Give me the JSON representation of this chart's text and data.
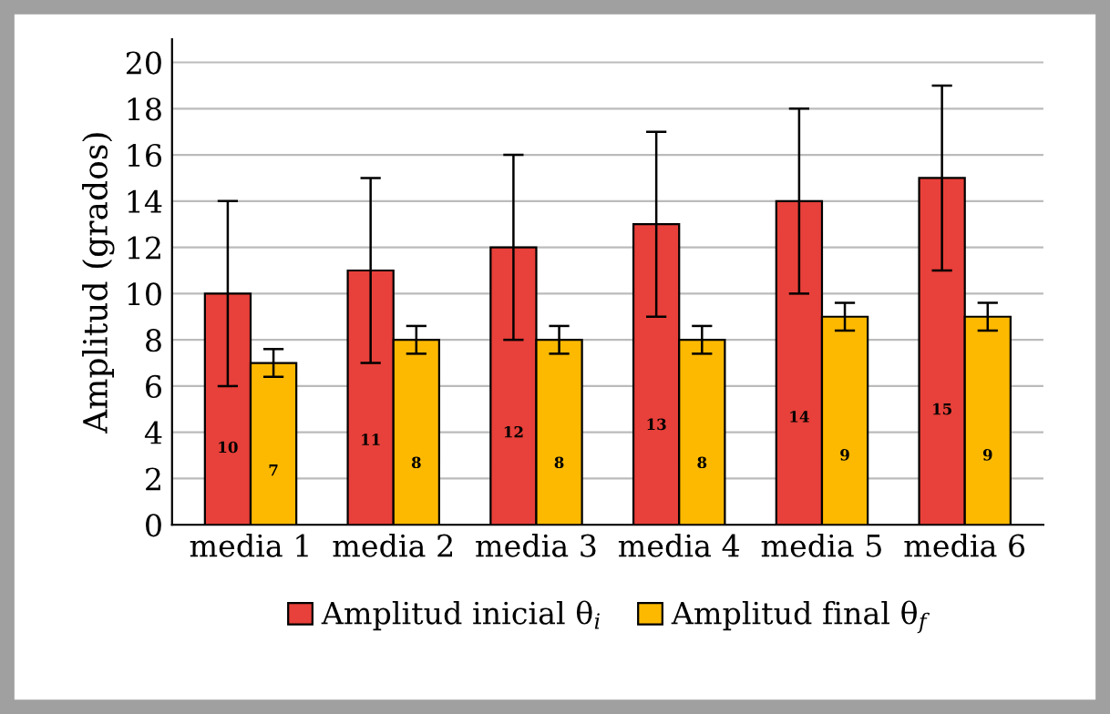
{
  "chart_data": {
    "type": "bar",
    "ylabel": "Amplitud (grados)",
    "categories": [
      "media 1",
      "media 2",
      "media 3",
      "media 4",
      "media 5",
      "media 6"
    ],
    "series": [
      {
        "name": "Amplitud inicial θ$_{i}$",
        "color": "#e8403a",
        "values": [
          10,
          11,
          12,
          13,
          14,
          15
        ],
        "errors": [
          4,
          4,
          4,
          4,
          4,
          4
        ]
      },
      {
        "name": "Amplitud final θ$_{f}$",
        "color": "#fcb900",
        "values": [
          7,
          8,
          8,
          8,
          9,
          9
        ],
        "errors": [
          0.6,
          0.6,
          0.6,
          0.6,
          0.6,
          0.6
        ]
      }
    ],
    "ylim": [
      0,
      21
    ],
    "yticks": [
      0,
      2,
      4,
      6,
      8,
      10,
      12,
      14,
      16,
      18,
      20
    ],
    "grid": "y",
    "legend": "bottom",
    "data_labels": true
  }
}
